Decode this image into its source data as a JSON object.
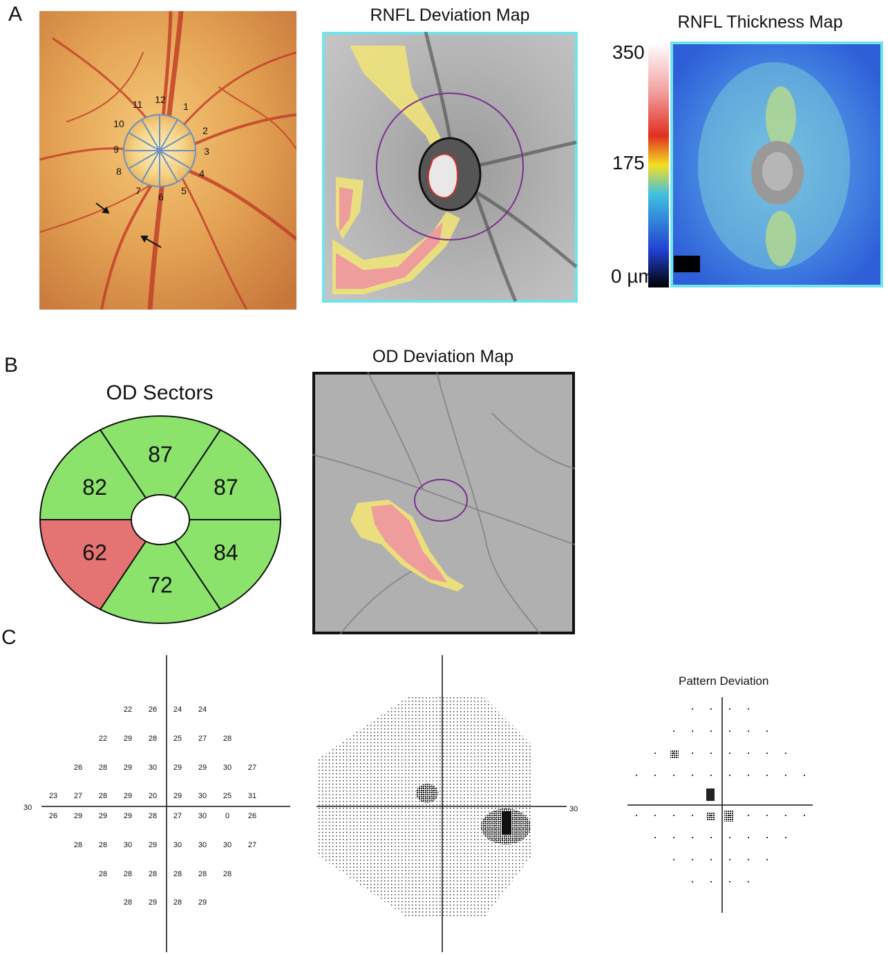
{
  "panels": {
    "a": {
      "letter": "A",
      "fundus": {
        "clock_hours": [
          "12",
          "1",
          "2",
          "3",
          "4",
          "5",
          "6",
          "7",
          "8",
          "9",
          "10",
          "11"
        ]
      },
      "deviation_map": {
        "title": "RNFL Deviation Map"
      },
      "thickness_map": {
        "title": "RNFL Thickness Map",
        "scale_labels": [
          "350",
          "175",
          "0 µm"
        ]
      }
    },
    "b": {
      "letter": "B",
      "sectors": {
        "title": "OD Sectors",
        "values": [
          {
            "label": "87",
            "status": "normal"
          },
          {
            "label": "87",
            "status": "normal"
          },
          {
            "label": "84",
            "status": "normal"
          },
          {
            "label": "72",
            "status": "normal"
          },
          {
            "label": "62",
            "status": "abnormal"
          },
          {
            "label": "82",
            "status": "normal"
          }
        ]
      },
      "od_deviation_map": {
        "title": "OD Deviation Map"
      }
    },
    "c": {
      "letter": "C",
      "threshold_rows": [
        [
          "22",
          "26",
          "24",
          "24"
        ],
        [
          "22",
          "29",
          "28",
          "25",
          "27",
          "28"
        ],
        [
          "26",
          "28",
          "29",
          "30",
          "29",
          "29",
          "30",
          "27"
        ],
        [
          "23",
          "27",
          "28",
          "29",
          "20",
          "29",
          "30",
          "25",
          "31"
        ],
        [
          "26",
          "29",
          "29",
          "29",
          "28",
          "27",
          "30",
          "0",
          "26"
        ],
        [
          "28",
          "28",
          "30",
          "29",
          "30",
          "30",
          "30",
          "27"
        ],
        [
          "28",
          "28",
          "28",
          "28",
          "28",
          "28"
        ],
        [
          "28",
          "29",
          "28",
          "29"
        ]
      ],
      "axis_label": "30",
      "greyscale_axis_label": "30",
      "pattern_deviation_title": "Pattern Deviation"
    }
  },
  "colors": {
    "normal": "#8be36b",
    "abnormal": "#e57373",
    "deviation_yellow": "#eee27a",
    "deviation_red": "#ee9c9c",
    "frame_cyan": "#6fe4ec"
  }
}
